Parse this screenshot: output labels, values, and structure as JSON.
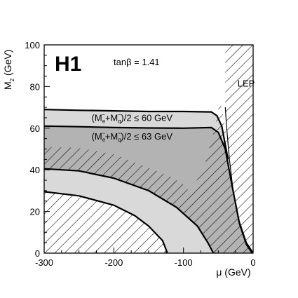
{
  "chart_data": {
    "type": "area",
    "logo": "H1",
    "parameter_label": "tanβ = 1.41",
    "xlabel": "μ (GeV)",
    "ylabel": "M",
    "ylabel_sub": "2",
    "ylabel_unit": " (GeV)",
    "xlim": [
      -300,
      0
    ],
    "ylim": [
      0,
      100
    ],
    "x_ticks": [
      -300,
      -200,
      -100,
      0
    ],
    "y_ticks": [
      0,
      20,
      40,
      60,
      80,
      100
    ],
    "grid": false,
    "colors": {
      "light_region": "#d9d9d9",
      "medium_region": "#b3b3b3",
      "hatch": "#000000",
      "boundary": "#000000"
    },
    "region_labels": [
      {
        "id": "label-60",
        "prefix": "(M",
        "sub1": "e",
        "tilde1": "~",
        "plus": "+M",
        "sub2": "q",
        "tilde2": "~",
        "suffix": ")/2 ≤ 60 GeV",
        "x": -232,
        "y": 63.5
      },
      {
        "id": "label-63",
        "prefix": "(M",
        "sub1": "e",
        "tilde1": "~",
        "plus": "+M",
        "sub2": "q",
        "tilde2": "~",
        "suffix": ")/2 ≤ 63 GeV",
        "x": -232,
        "y": 54.5
      }
    ],
    "lep_label": {
      "text": "LEP",
      "x": -10,
      "y": 80
    },
    "series": [
      {
        "name": "(M~e+M~q)/2 ≤ 60 GeV",
        "fill": "light",
        "boundary_top": [
          [
            -300,
            69
          ],
          [
            -250,
            68.6
          ],
          [
            -200,
            68.3
          ],
          [
            -150,
            68
          ],
          [
            -100,
            68
          ],
          [
            -60,
            67.8
          ],
          [
            -52,
            66
          ],
          [
            -45,
            61
          ],
          [
            -36,
            45
          ]
        ],
        "boundary_bottom": [
          [
            -300,
            61
          ],
          [
            -200,
            60.3
          ],
          [
            -100,
            60
          ],
          [
            -60,
            60
          ],
          [
            -50,
            59
          ],
          [
            -36,
            45
          ]
        ]
      },
      {
        "name": "(M~e+M~q)/2 ≤ 63 GeV",
        "fill": "medium",
        "boundary_top": [
          [
            -300,
            61
          ],
          [
            -250,
            60.7
          ],
          [
            -200,
            60.3
          ],
          [
            -150,
            60.1
          ],
          [
            -100,
            60
          ],
          [
            -60,
            60.3
          ],
          [
            -50,
            58
          ],
          [
            -40,
            50
          ],
          [
            -30,
            32
          ],
          [
            -20,
            15
          ],
          [
            -10,
            5
          ],
          [
            0,
            0
          ]
        ],
        "hatched_lower": [
          [
            -300,
            51
          ],
          [
            -250,
            50.5
          ],
          [
            -200,
            47.5
          ],
          [
            -150,
            41
          ],
          [
            -120,
            37
          ],
          [
            -100,
            33
          ],
          [
            -90,
            29
          ],
          [
            -70,
            42
          ],
          [
            -55,
            60
          ],
          [
            -48,
            73
          ],
          [
            -43,
            62
          ],
          [
            -36,
            45
          ],
          [
            -28,
            25
          ],
          [
            -15,
            8
          ],
          [
            0,
            0
          ]
        ]
      },
      {
        "name": "hatched-band-upper",
        "fill": "medium-hatched",
        "top": [
          [
            -300,
            40.5
          ],
          [
            -250,
            39.5
          ],
          [
            -200,
            36
          ],
          [
            -150,
            30
          ],
          [
            -110,
            22
          ],
          [
            -80,
            13
          ],
          [
            -65,
            5
          ],
          [
            -57,
            0
          ]
        ],
        "bottom": [
          [
            -300,
            29.5
          ],
          [
            -250,
            27.5
          ],
          [
            -200,
            23
          ],
          [
            -170,
            18
          ],
          [
            -150,
            13
          ],
          [
            -130,
            6
          ],
          [
            -123,
            0
          ]
        ]
      },
      {
        "name": "lower-hatched",
        "fill": "hatched",
        "top": [
          [
            -300,
            29.5
          ],
          [
            -250,
            27.5
          ],
          [
            -200,
            23
          ],
          [
            -170,
            18
          ],
          [
            -150,
            13
          ],
          [
            -130,
            6
          ],
          [
            -123,
            0
          ]
        ]
      },
      {
        "name": "LEP",
        "fill": "hatched",
        "region": [
          [
            -40,
            100
          ],
          [
            0,
            100
          ],
          [
            0,
            0
          ],
          [
            -2,
            0
          ],
          [
            -10,
            4
          ],
          [
            -20,
            14
          ],
          [
            -28,
            28
          ],
          [
            -34,
            45
          ],
          [
            -38,
            60
          ],
          [
            -40,
            70
          ]
        ]
      }
    ]
  }
}
